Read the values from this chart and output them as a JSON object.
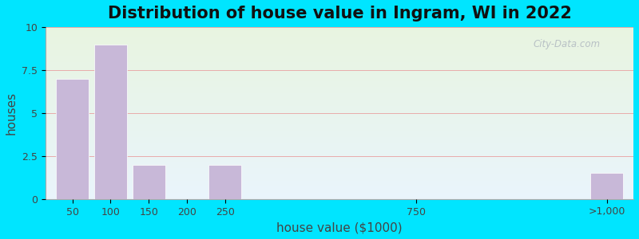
{
  "title": "Distribution of house value in Ingram, WI in 2022",
  "xlabel": "house value ($1000)",
  "ylabel": "houses",
  "bar_color": "#c8b8d8",
  "bar_edgecolor": "#ffffff",
  "ylim": [
    0,
    10
  ],
  "yticks": [
    0,
    2.5,
    5,
    7.5,
    10
  ],
  "background_outer": "#00e5ff",
  "background_inner_top": "#e8f2e2",
  "background_inner_bottom": "#eaf4fc",
  "grid_color": "#e8a0a0",
  "bars": [
    {
      "label": "50",
      "height": 7.0
    },
    {
      "label": "100",
      "height": 9.0
    },
    {
      "label": "150",
      "height": 2.0
    },
    {
      "label": "200",
      "height": 0.0
    },
    {
      "label": "250",
      "height": 2.0
    },
    {
      "label": "750",
      "height": 0.0
    },
    {
      "label": ">1,000",
      "height": 1.5
    }
  ],
  "custom_x": [
    0,
    1,
    2,
    3,
    4,
    9,
    14
  ],
  "bar_width": 0.85,
  "xlim": [
    -0.7,
    14.7
  ],
  "watermark": "City-Data.com",
  "title_fontsize": 15,
  "axis_label_fontsize": 11,
  "tick_fontsize": 9
}
